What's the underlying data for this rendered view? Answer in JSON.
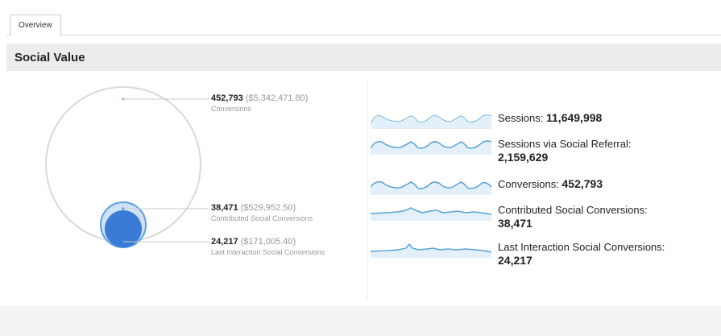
{
  "tabs": [
    {
      "label": "Overview"
    }
  ],
  "section": {
    "title": "Social Value"
  },
  "circles": [
    {
      "value": "452,793",
      "money": "($5,342,471.80)",
      "label": "Conversions"
    },
    {
      "value": "38,471",
      "money": "($529,952.50)",
      "label": "Contributed Social Conversions"
    },
    {
      "value": "24,217",
      "money": "($171,005.40)",
      "label": "Last Interaction Social Conversions"
    }
  ],
  "metrics": [
    {
      "label": "Sessions:",
      "value": "11,649,998"
    },
    {
      "label": "Sessions via Social Referral:",
      "value": "2,159,629"
    },
    {
      "label": "Conversions:",
      "value": "452,793"
    },
    {
      "label": "Contributed Social Conversions:",
      "value": "38,471"
    },
    {
      "label": "Last Interaction Social Conversions:",
      "value": "24,217"
    }
  ],
  "colors": {
    "accent": "#3a7bd5",
    "circle_stroke": "#d9d9d9",
    "sparkline": "#5aa4d6",
    "header_bg": "#ececec"
  }
}
